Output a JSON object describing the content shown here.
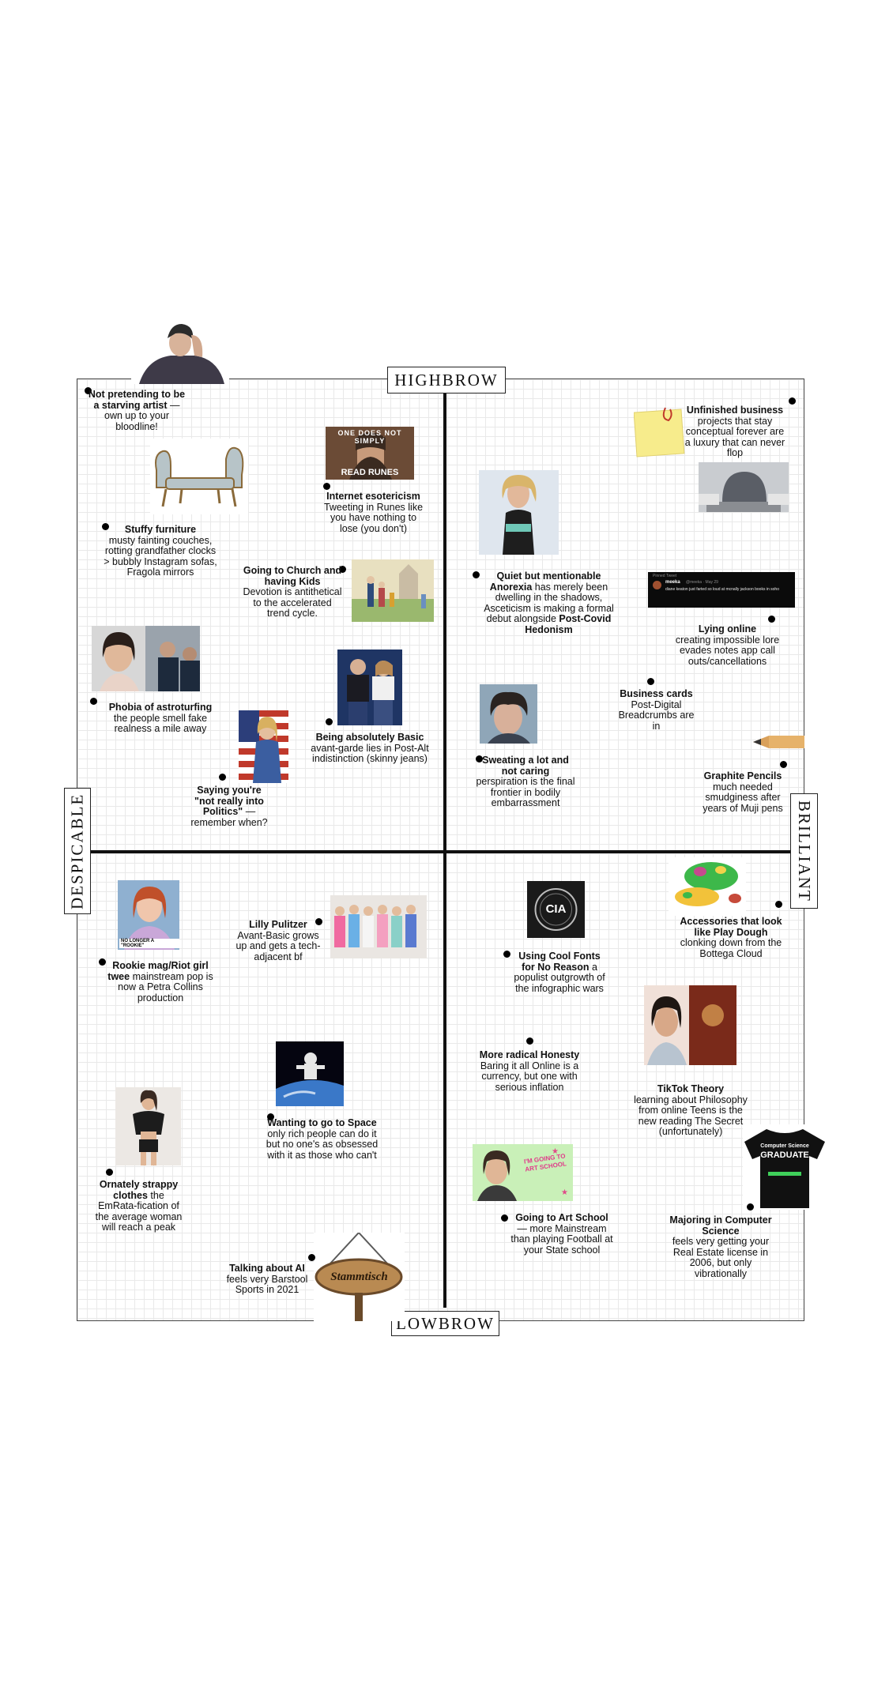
{
  "axes": {
    "top": "HIGHBROW",
    "bottom": "LOWBROW",
    "left": "DESPICABLE",
    "right": "BRILLIANT"
  },
  "items": {
    "starving_artist": {
      "title": "Not pretending to be a starving artist",
      "body": "— own up to your bloodline!"
    },
    "internet_esotericism": {
      "title": "Internet esotericism",
      "body": "Tweeting in Runes like you have nothing to lose (you don't)"
    },
    "stuffy_furniture": {
      "title": "Stuffy furniture",
      "body": "musty fainting couches, rotting grandfather clocks > bubbly Instagram sofas, Fragola mirrors"
    },
    "going_to_church": {
      "title": "Going to Church and having Kids",
      "body": "Devotion is antithetical to the accelerated trend cycle."
    },
    "astroturfing": {
      "title": "Phobia of astroturfing",
      "body": "the people smell fake realness a mile away"
    },
    "absolutely_basic": {
      "title": "Being absolutely Basic",
      "body": "avant-garde lies in Post-Alt indistinction (skinny jeans)"
    },
    "not_into_politics": {
      "title": "Saying you're \"not really into Politics\"",
      "body": "— remember when?"
    },
    "unfinished_business": {
      "title": "Unfinished business",
      "body": "projects that stay conceptual forever are a luxury that can never flop"
    },
    "quiet_anorexia": {
      "title": "Quiet but mentionable Anorexia",
      "body": "has merely been dwelling in the shadows, Asceticism is making a formal debut alongside",
      "tail": "Post-Covid Hedonism"
    },
    "lying_online": {
      "title": "Lying online",
      "body": "creating impossible lore evades notes app call outs/cancellations"
    },
    "business_cards": {
      "title": "Business cards",
      "body": "Post-Digital Breadcrumbs are in"
    },
    "sweating": {
      "title": "Sweating a lot and not caring",
      "body": "perspiration is the final frontier in bodily embarrassment"
    },
    "graphite_pencils": {
      "title": "Graphite Pencils",
      "body": "much needed smudginess after years of Muji pens"
    },
    "rookie_mag": {
      "title": "Rookie mag/Riot girl twee",
      "body": "mainstream pop is now a Petra Collins production"
    },
    "lilly_pulitzer": {
      "title": "Lilly Pulitzer",
      "body": "Avant-Basic grows up and gets a tech-adjacent bf"
    },
    "space": {
      "title": "Wanting to go to Space",
      "body": "only rich people can do it but no one's as obsessed with it as those who can't"
    },
    "strappy_clothes": {
      "title": "Ornately strappy clothes",
      "body": "the EmRata-fication of the average woman will reach a peak"
    },
    "talking_ai": {
      "title": "Talking about AI",
      "body": "feels very Barstool Sports in 2021"
    },
    "play_dough": {
      "title": "Accessories that look like Play Dough",
      "body": "clonking down from the Bottega Cloud"
    },
    "cool_fonts": {
      "title": "Using Cool Fonts for No Reason",
      "body": "a populist outgrowth of the infographic wars"
    },
    "radical_honesty": {
      "title": "More radical Honesty",
      "body": "Baring it all Online is a currency, but one with serious inflation"
    },
    "tiktok_theory": {
      "title": "TikTok Theory",
      "body": "learning about Philosophy from online Teens is the new reading The Secret (unfortunately)"
    },
    "art_school": {
      "title": "Going to Art School",
      "body": "— more Mainstream than playing Football at your State school"
    },
    "computer_science": {
      "title": "Majoring in Computer Science",
      "body": "feels very getting your Real Estate license in 2006, but only vibrationally"
    }
  },
  "image_text": {
    "meme_top": "ONE DOES NOT SIMPLY",
    "meme_bottom": "READ RUNES",
    "rookie_caption": "NO LONGER A \"ROOKIE\"",
    "cia": "CIA",
    "tweet_name": "meeka",
    "tweet_handle": "@meeka · May 29",
    "tweet_text": "diane keaton just farted so loud at mcnally jackson books in soho",
    "tweet_header": "Pinned Tweet",
    "art_school_sign": "I'M GOING TO ART SCHOOL",
    "shirt_line1": "Computer Science",
    "shirt_line2": "GRADUATE",
    "sign_text": "Stammtisch"
  },
  "colors": {
    "grid_line": "#e9e9e9",
    "axis": "#111111",
    "sticky_note": "#f7ec8c",
    "dough_green": "#3db84a"
  }
}
